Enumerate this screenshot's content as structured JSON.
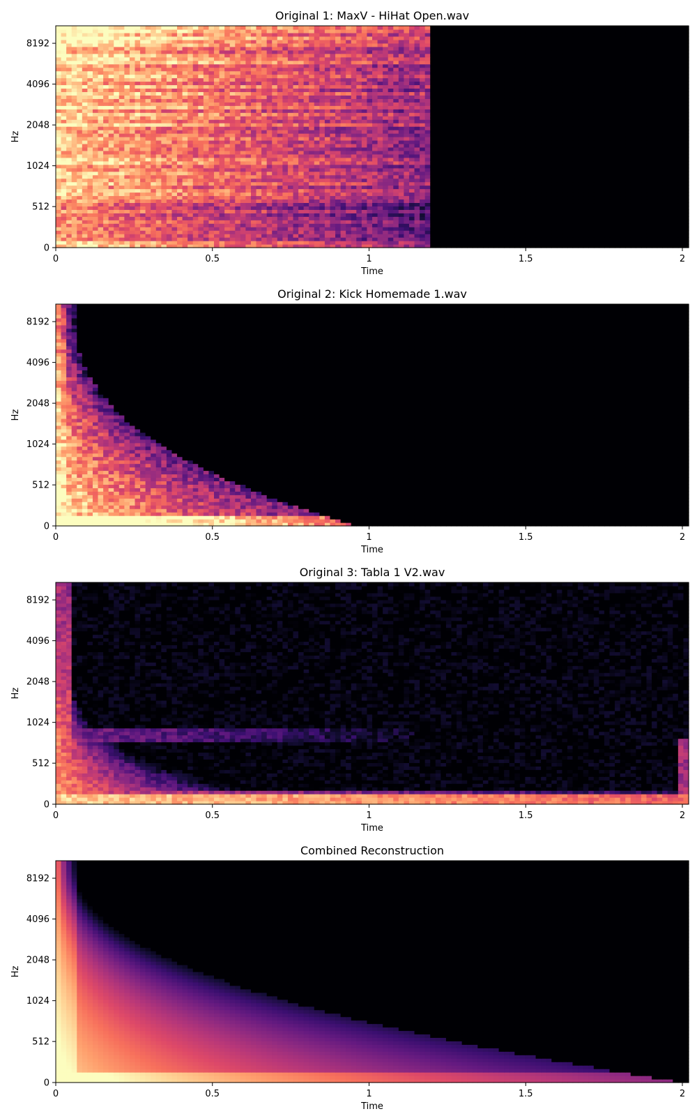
{
  "chart_data": [
    {
      "type": "heatmap",
      "title": "Original 1: MaxV - HiHat Open.wav",
      "xlabel": "Time",
      "ylabel": "Hz",
      "xlim": [
        0,
        2.02
      ],
      "x_ticks": [
        0,
        0.5,
        1,
        1.5,
        2
      ],
      "x_tick_labels": [
        "0",
        "0.5",
        "1",
        "1.5",
        "2"
      ],
      "y_scale": "log2",
      "y_ticks": [
        0,
        512,
        1024,
        2048,
        4096,
        8192
      ],
      "y_tick_labels": [
        "0",
        "512",
        "1024",
        "2048",
        "4096",
        "8192"
      ],
      "colormap": "magma",
      "grid": false,
      "signal_end_time": 1.19,
      "dominant_band": "broadband (high frequencies strongest)"
    },
    {
      "type": "heatmap",
      "title": "Original 2: Kick Homemade 1.wav",
      "xlabel": "Time",
      "ylabel": "Hz",
      "xlim": [
        0,
        2.02
      ],
      "x_ticks": [
        0,
        0.5,
        1,
        1.5,
        2
      ],
      "x_tick_labels": [
        "0",
        "0.5",
        "1",
        "1.5",
        "2"
      ],
      "y_scale": "log2",
      "y_ticks": [
        0,
        512,
        1024,
        2048,
        4096,
        8192
      ],
      "y_tick_labels": [
        "0",
        "512",
        "1024",
        "2048",
        "4096",
        "8192"
      ],
      "colormap": "magma",
      "grid": false,
      "signal_end_time": 0.9,
      "dominant_band": "low frequencies, fast decay of highs"
    },
    {
      "type": "heatmap",
      "title": "Original 3: Tabla 1 V2.wav",
      "xlabel": "Time",
      "ylabel": "Hz",
      "xlim": [
        0,
        2.02
      ],
      "x_ticks": [
        0,
        0.5,
        1,
        1.5,
        2
      ],
      "x_tick_labels": [
        "0",
        "0.5",
        "1",
        "1.5",
        "2"
      ],
      "y_scale": "log2",
      "y_ticks": [
        0,
        512,
        1024,
        2048,
        4096,
        8192
      ],
      "y_tick_labels": [
        "0",
        "512",
        "1024",
        "2048",
        "4096",
        "8192"
      ],
      "colormap": "magma",
      "grid": false,
      "signal_end_time": 2.02,
      "dominant_band": "sustained low harmonic bands"
    },
    {
      "type": "heatmap",
      "title": "Combined Reconstruction",
      "xlabel": "Time",
      "ylabel": "Hz",
      "xlim": [
        0,
        2.02
      ],
      "x_ticks": [
        0,
        0.5,
        1,
        1.5,
        2
      ],
      "x_tick_labels": [
        "0",
        "0.5",
        "1",
        "1.5",
        "2"
      ],
      "y_scale": "log2",
      "y_ticks": [
        0,
        512,
        1024,
        2048,
        4096,
        8192
      ],
      "y_tick_labels": [
        "0",
        "512",
        "1024",
        "2048",
        "4096",
        "8192"
      ],
      "colormap": "magma",
      "grid": false,
      "signal_end_time": 1.8,
      "dominant_band": "smooth decaying envelope"
    }
  ]
}
